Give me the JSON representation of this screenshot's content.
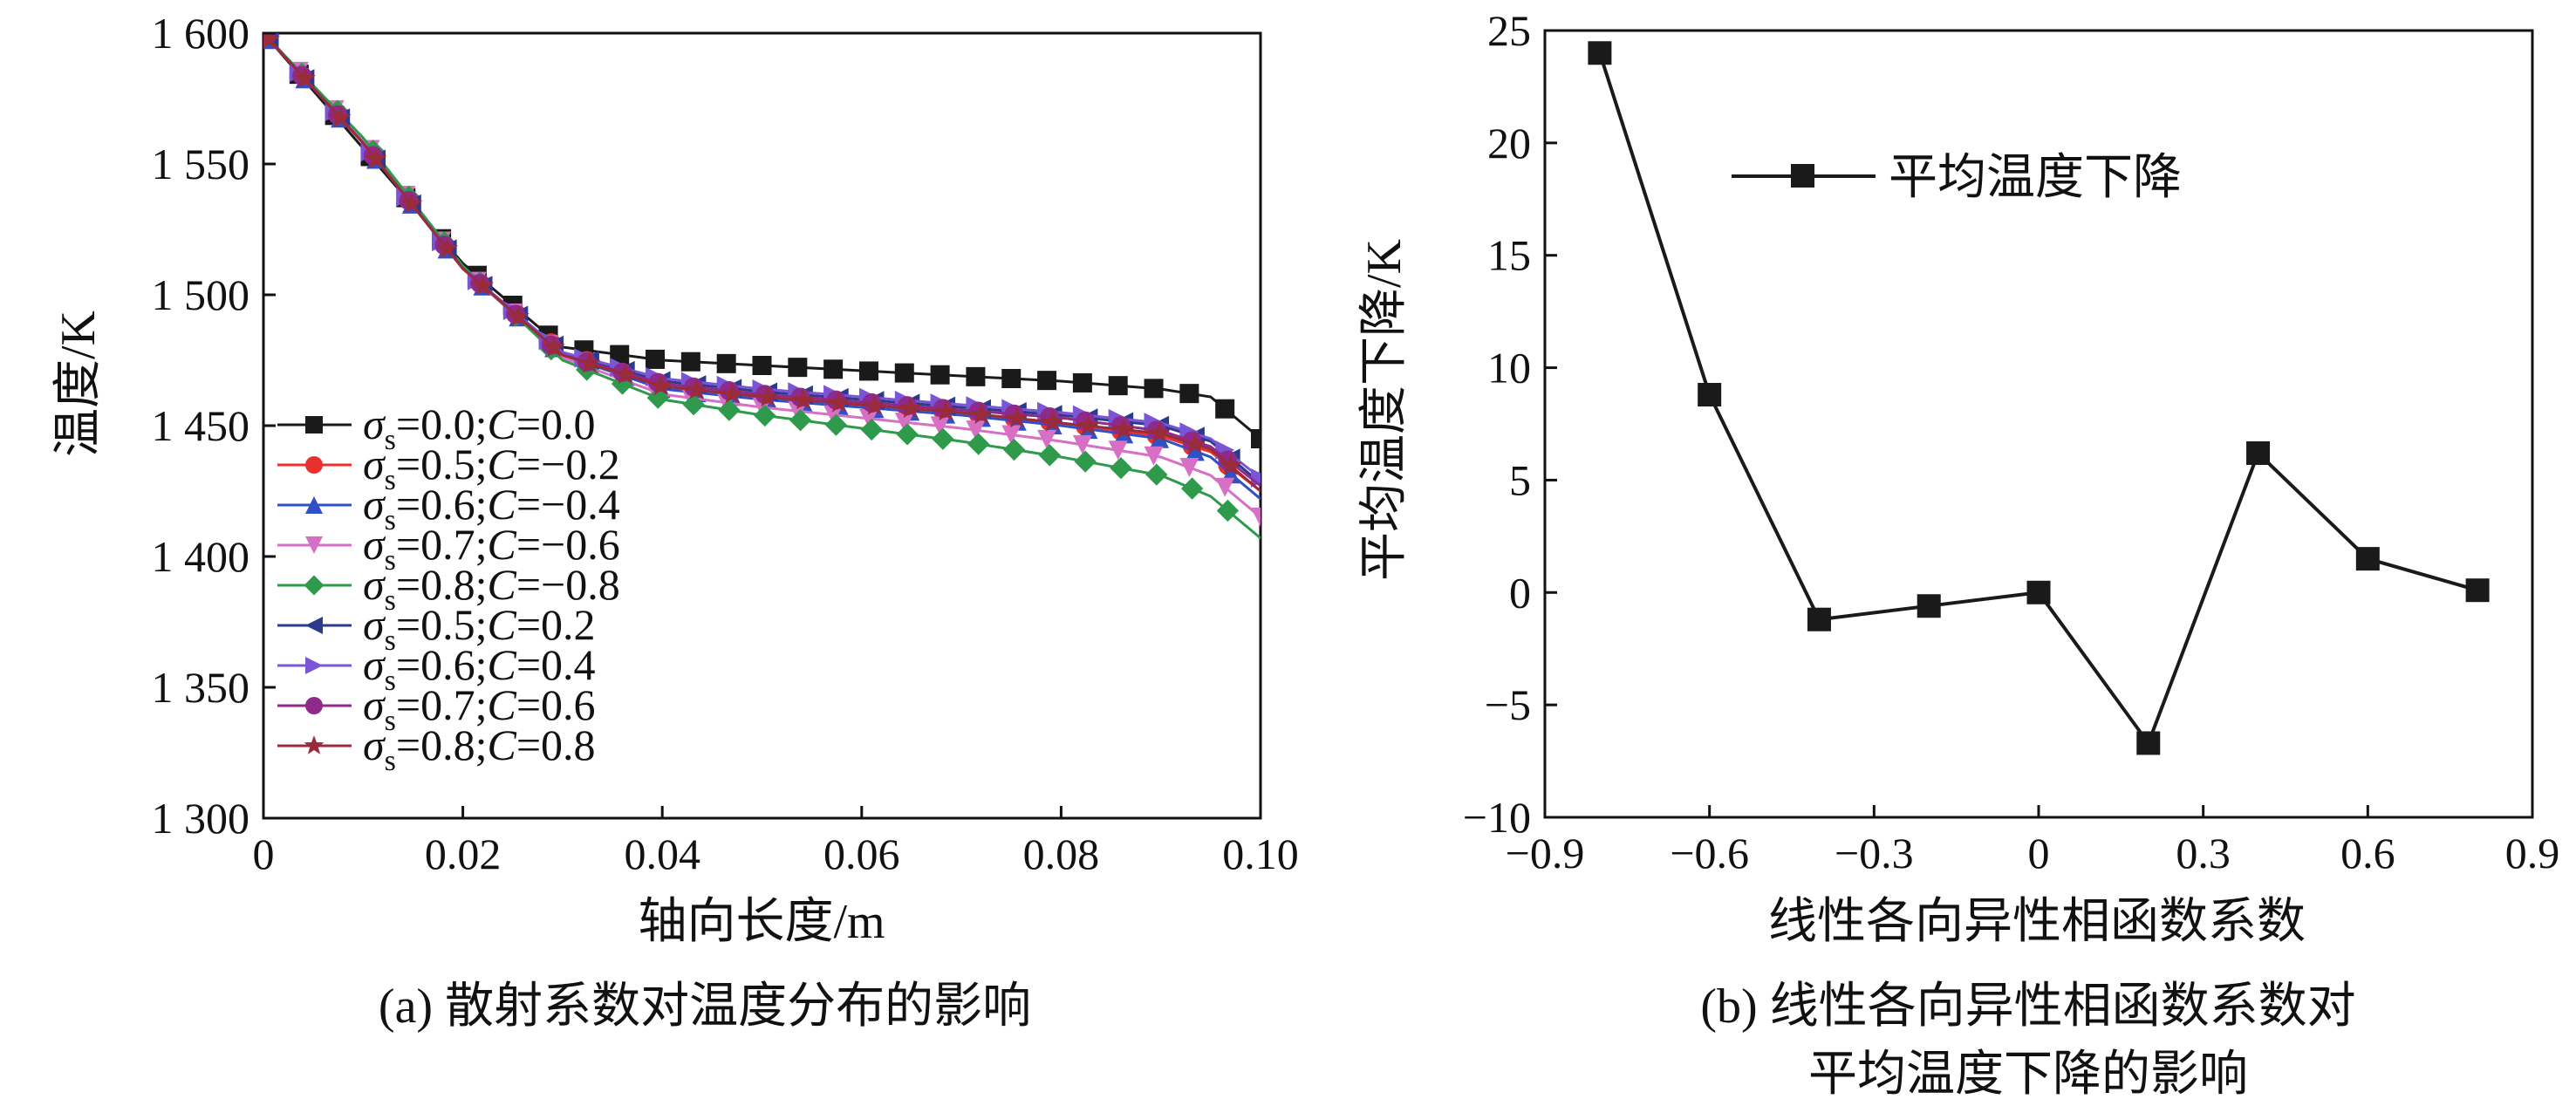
{
  "captions": {
    "a": "(a) 散射系数对温度分布的影响",
    "b_line1": "(b) 线性各向异性相函数系数对",
    "b_line2": "平均温度下降的影响"
  },
  "chart_data": [
    {
      "type": "line",
      "xlabel": "轴向长度/m",
      "ylabel": "温度/K",
      "xlim": [
        0,
        0.1
      ],
      "ylim": [
        1300,
        1600
      ],
      "xticks": [
        0,
        0.02,
        0.04,
        0.06,
        0.08,
        0.1
      ],
      "xtick_labels": [
        "0",
        "0.02",
        "0.04",
        "0.06",
        "0.08",
        "0.10"
      ],
      "yticks": [
        1300,
        1350,
        1400,
        1450,
        1500,
        1550,
        1600
      ],
      "ytick_labels": [
        "1 300",
        "1 350",
        "1 400",
        "1 450",
        "1 500",
        "1 550",
        "1 600"
      ],
      "grid": false,
      "legend_position": "left",
      "x": [
        0,
        0.01,
        0.02,
        0.03,
        0.04,
        0.05,
        0.06,
        0.07,
        0.08,
        0.09,
        0.095,
        0.1
      ],
      "series": [
        {
          "name": "σs=0.0;C=0.0",
          "sigma": "0.0",
          "c": "0.0",
          "color": "#1a1a1a",
          "marker": "square",
          "values": [
            1600,
            1556,
            1512,
            1480,
            1475,
            1473,
            1471,
            1469,
            1467,
            1464,
            1461,
            1445
          ]
        },
        {
          "name": "σs=0.5;C=−0.2",
          "sigma": "0.5",
          "c": "−0.2",
          "color": "#e8312f",
          "marker": "circle",
          "values": [
            1600,
            1558,
            1510,
            1478,
            1465,
            1461,
            1458,
            1455,
            1451,
            1446,
            1440,
            1425
          ]
        },
        {
          "name": "σs=0.6;C=−0.4",
          "sigma": "0.6",
          "c": "−0.4",
          "color": "#3050c8",
          "marker": "triangle-up",
          "values": [
            1600,
            1558,
            1510,
            1477,
            1464,
            1460,
            1457,
            1454,
            1450,
            1445,
            1438,
            1422
          ]
        },
        {
          "name": "σs=0.7;C=−0.6",
          "sigma": "0.7",
          "c": "−0.6",
          "color": "#d76fc4",
          "marker": "triangle-down",
          "values": [
            1600,
            1559,
            1510,
            1476,
            1462,
            1457,
            1453,
            1449,
            1444,
            1438,
            1431,
            1415
          ]
        },
        {
          "name": "σs=0.8;C=−0.8",
          "sigma": "0.8",
          "c": "−0.8",
          "color": "#2f9a4c",
          "marker": "diamond",
          "values": [
            1600,
            1560,
            1511,
            1475,
            1460,
            1454,
            1449,
            1444,
            1438,
            1431,
            1423,
            1407
          ]
        },
        {
          "name": "σs=0.5;C=0.2",
          "sigma": "0.5",
          "c": "0.2",
          "color": "#2b3b8c",
          "marker": "triangle-left",
          "values": [
            1600,
            1558,
            1510,
            1478,
            1467,
            1463,
            1460,
            1457,
            1454,
            1450,
            1444,
            1428
          ]
        },
        {
          "name": "σs=0.6;C=0.4",
          "sigma": "0.6",
          "c": "0.4",
          "color": "#7b55d6",
          "marker": "triangle-right",
          "values": [
            1600,
            1558,
            1510,
            1478,
            1468,
            1464,
            1461,
            1458,
            1455,
            1451,
            1445,
            1430
          ]
        },
        {
          "name": "σs=0.7;C=0.6",
          "sigma": "0.7",
          "c": "0.6",
          "color": "#8e2a8a",
          "marker": "circle",
          "values": [
            1600,
            1558,
            1510,
            1477,
            1466,
            1462,
            1459,
            1456,
            1453,
            1448,
            1442,
            1427
          ]
        },
        {
          "name": "σs=0.8;C=0.8",
          "sigma": "0.8",
          "c": "0.8",
          "color": "#9a2b3a",
          "marker": "star",
          "values": [
            1600,
            1558,
            1510,
            1477,
            1465,
            1461,
            1458,
            1455,
            1451,
            1447,
            1441,
            1425
          ]
        }
      ]
    },
    {
      "type": "line",
      "xlabel": "线性各向异性相函数系数",
      "ylabel": "平均温度下降/K",
      "xlim": [
        -0.9,
        0.9
      ],
      "ylim": [
        -10,
        25
      ],
      "xticks": [
        -0.9,
        -0.6,
        -0.3,
        0,
        0.3,
        0.6,
        0.9
      ],
      "xtick_labels": [
        "−0.9",
        "−0.6",
        "−0.3",
        "0",
        "0.3",
        "0.6",
        "0.9"
      ],
      "yticks": [
        -10,
        -5,
        0,
        5,
        10,
        15,
        20,
        25
      ],
      "ytick_labels": [
        "−10",
        "−5",
        "0",
        "5",
        "10",
        "15",
        "20",
        "25"
      ],
      "grid": false,
      "legend_position": "top-right",
      "x": [
        -0.8,
        -0.6,
        -0.4,
        -0.2,
        0,
        0.2,
        0.4,
        0.6,
        0.8
      ],
      "series": [
        {
          "name": "平均温度下降",
          "color": "#1a1a1a",
          "marker": "square",
          "values": [
            24,
            8.8,
            -1.2,
            -0.6,
            0,
            -6.7,
            6.2,
            1.5,
            0.1
          ]
        }
      ]
    }
  ]
}
